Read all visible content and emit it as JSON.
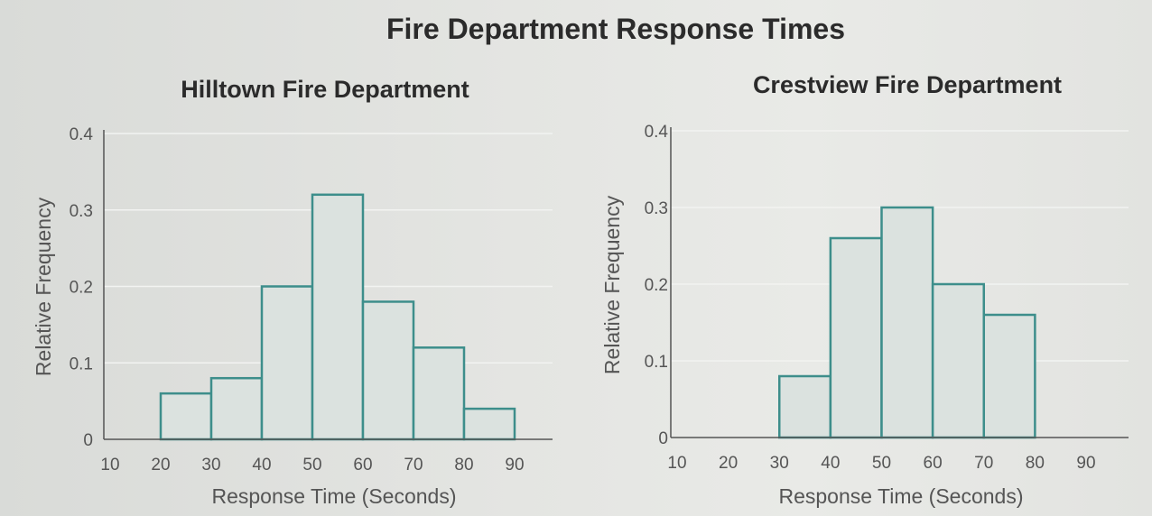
{
  "main_title": "Fire Department Response Times",
  "colors": {
    "bar_fill": "#dbe2df",
    "bar_stroke": "#3d8e8b",
    "axis": "#555555",
    "grid": "#f2f3f1",
    "text": "#555555",
    "title": "#2b2b2b"
  },
  "chart_data": [
    {
      "type": "bar",
      "title": "Hilltown Fire Department",
      "xlabel": "Response Time (Seconds)",
      "ylabel": "Relative Frequency",
      "xlim": [
        10,
        90
      ],
      "ylim": [
        0,
        0.4
      ],
      "x_ticks": [
        10,
        20,
        30,
        40,
        50,
        60,
        70,
        80,
        90
      ],
      "y_ticks": [
        0,
        0.1,
        0.2,
        0.3,
        0.4
      ],
      "y_tick_labels": [
        "0",
        "0.1",
        "0.2",
        "0.3",
        "0.4"
      ],
      "bins": [
        {
          "start": 20,
          "end": 30,
          "value": 0.06
        },
        {
          "start": 30,
          "end": 40,
          "value": 0.08
        },
        {
          "start": 40,
          "end": 50,
          "value": 0.2
        },
        {
          "start": 50,
          "end": 60,
          "value": 0.32
        },
        {
          "start": 60,
          "end": 70,
          "value": 0.18
        },
        {
          "start": 70,
          "end": 80,
          "value": 0.12
        },
        {
          "start": 80,
          "end": 90,
          "value": 0.04
        }
      ],
      "grid": true
    },
    {
      "type": "bar",
      "title": "Crestview Fire Department",
      "xlabel": "Response Time (Seconds)",
      "ylabel": "Relative Frequency",
      "xlim": [
        10,
        90
      ],
      "ylim": [
        0,
        0.4
      ],
      "x_ticks": [
        10,
        20,
        30,
        40,
        50,
        60,
        70,
        80,
        90
      ],
      "y_ticks": [
        0,
        0.1,
        0.2,
        0.3,
        0.4
      ],
      "y_tick_labels": [
        "0",
        "0.1",
        "0.2",
        "0.3",
        "0.4"
      ],
      "bins": [
        {
          "start": 30,
          "end": 40,
          "value": 0.08
        },
        {
          "start": 40,
          "end": 50,
          "value": 0.26
        },
        {
          "start": 50,
          "end": 60,
          "value": 0.3
        },
        {
          "start": 60,
          "end": 70,
          "value": 0.2
        },
        {
          "start": 70,
          "end": 80,
          "value": 0.16
        }
      ],
      "grid": true
    }
  ]
}
